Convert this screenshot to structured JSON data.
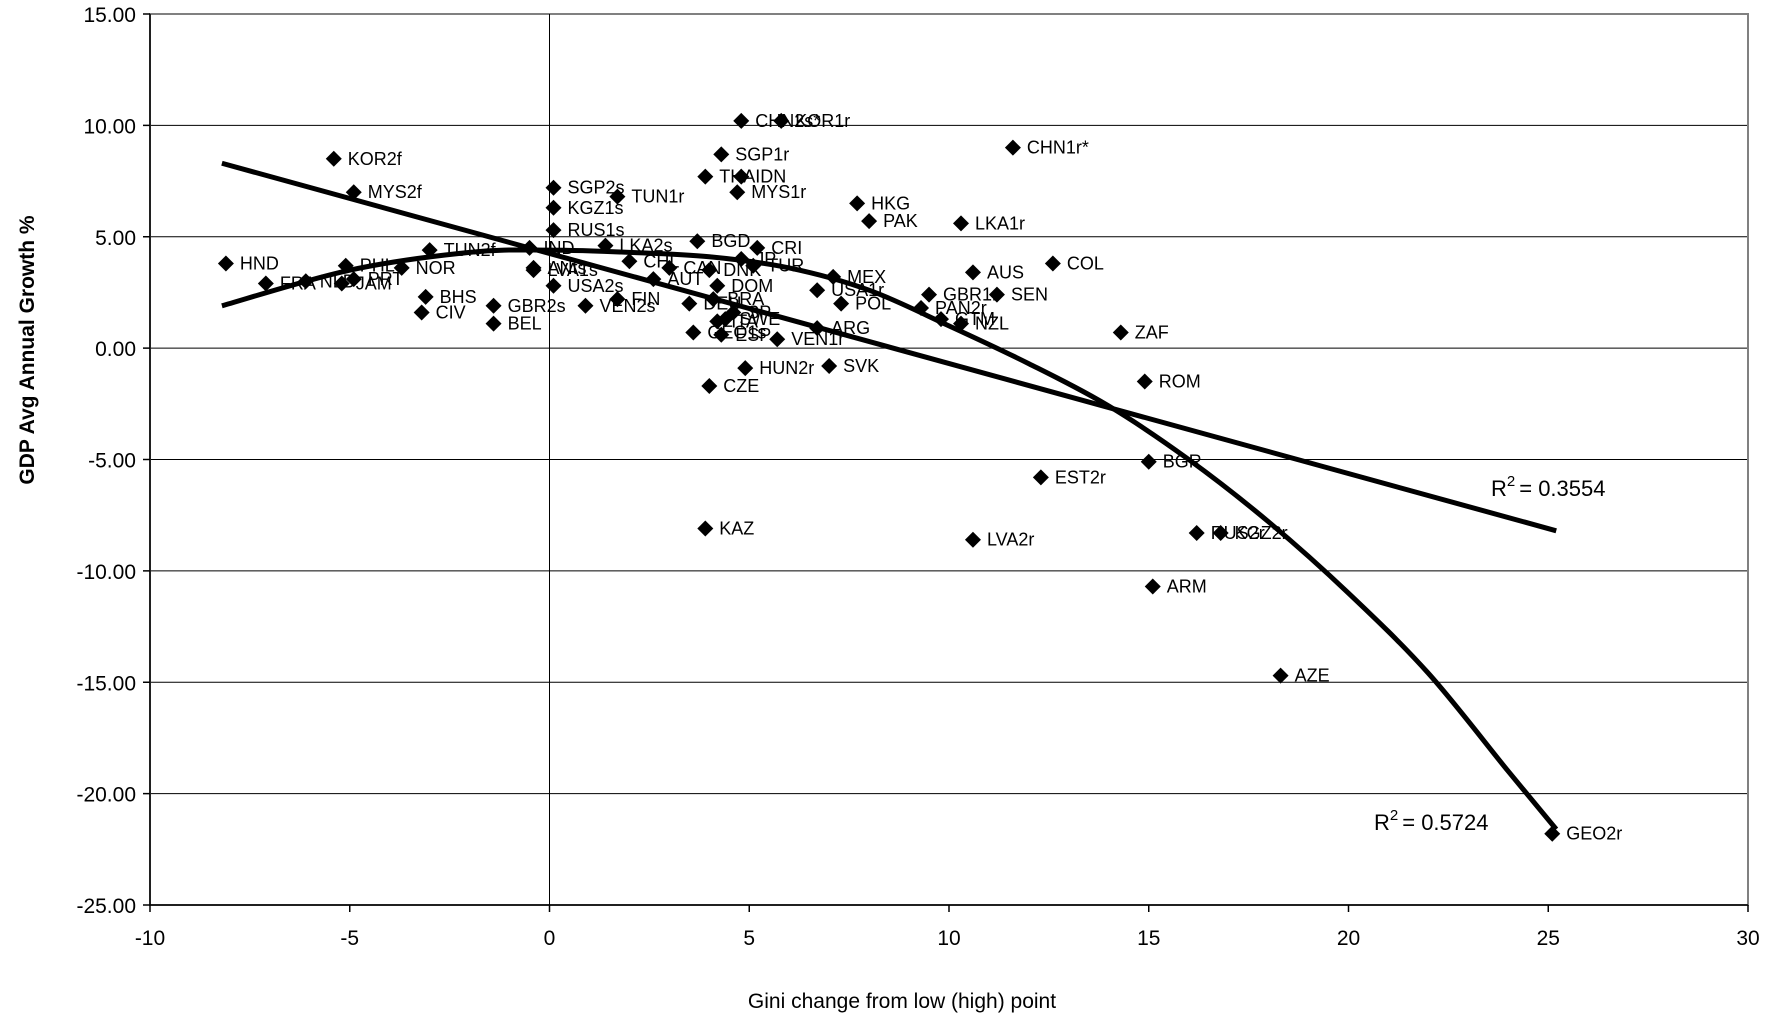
{
  "chart_data": {
    "type": "scatter",
    "title": "",
    "xlabel": "Gini change from low (high) point",
    "ylabel": "GDP Avg Annual Growth %",
    "xlim": [
      -10,
      30
    ],
    "ylim": [
      -25,
      15
    ],
    "xticks": [
      -10,
      -5,
      0,
      5,
      10,
      15,
      20,
      25,
      30
    ],
    "xtick_labels": [
      "-10",
      "-5",
      "0",
      "5",
      "10",
      "15",
      "20",
      "25",
      "30"
    ],
    "yticks": [
      15,
      10,
      5,
      0,
      -5,
      -10,
      -15,
      -20,
      -25
    ],
    "ytick_labels": [
      "15.00",
      "10.00",
      "5.00",
      "0.00",
      "-5.00",
      "-10.00",
      "-15.00",
      "-20.00",
      "-25.00"
    ],
    "grid": {
      "horizontal": true,
      "vertical": false
    },
    "reference_line_x": 0,
    "points": [
      {
        "label": "CHN2s*",
        "x": 4.8,
        "y": 10.2
      },
      {
        "label": "KOR1r",
        "x": 5.8,
        "y": 10.2
      },
      {
        "label": "CHN1r*",
        "x": 11.6,
        "y": 9.0
      },
      {
        "label": "KOR2f",
        "x": -5.4,
        "y": 8.5
      },
      {
        "label": "SGP1r",
        "x": 4.3,
        "y": 8.7
      },
      {
        "label": "THA",
        "x": 3.9,
        "y": 7.7
      },
      {
        "label": "IDN",
        "x": 4.8,
        "y": 7.7
      },
      {
        "label": "MYS2f",
        "x": -4.9,
        "y": 7.0
      },
      {
        "label": "SGP2s",
        "x": 0.1,
        "y": 7.2
      },
      {
        "label": "MYS1r",
        "x": 4.7,
        "y": 7.0
      },
      {
        "label": "TUN1r",
        "x": 1.7,
        "y": 6.8
      },
      {
        "label": "HKG",
        "x": 7.7,
        "y": 6.5
      },
      {
        "label": "KGZ1s",
        "x": 0.1,
        "y": 6.3
      },
      {
        "label": "PAK",
        "x": 8.0,
        "y": 5.7
      },
      {
        "label": "LKA1r",
        "x": 10.3,
        "y": 5.6
      },
      {
        "label": "RUS1s",
        "x": 0.1,
        "y": 5.3
      },
      {
        "label": "BGD",
        "x": 3.7,
        "y": 4.8
      },
      {
        "label": "CRI",
        "x": 5.2,
        "y": 4.5
      },
      {
        "label": "TUN2f",
        "x": -3.0,
        "y": 4.4
      },
      {
        "label": "LKA2s",
        "x": 1.4,
        "y": 4.6
      },
      {
        "label": "JP",
        "x": 4.8,
        "y": 4.0
      },
      {
        "label": "HND",
        "x": -8.1,
        "y": 3.8
      },
      {
        "label": "PHL",
        "x": -5.1,
        "y": 3.7
      },
      {
        "label": "IND",
        "x": -0.5,
        "y": 4.5
      },
      {
        "label": "ANts",
        "x": -0.4,
        "y": 3.6
      },
      {
        "label": "COL",
        "x": 12.6,
        "y": 3.8
      },
      {
        "label": "TUR",
        "x": 5.1,
        "y": 3.7
      },
      {
        "label": "CHL",
        "x": 2.0,
        "y": 3.9
      },
      {
        "label": "CAN",
        "x": 3.0,
        "y": 3.6
      },
      {
        "label": "NOR",
        "x": -3.7,
        "y": 3.6
      },
      {
        "label": "LVA1s",
        "x": -0.4,
        "y": 3.5
      },
      {
        "label": "DNK",
        "x": 4.0,
        "y": 3.5
      },
      {
        "label": "AUS",
        "x": 10.6,
        "y": 3.4
      },
      {
        "label": "MEX",
        "x": 7.1,
        "y": 3.2
      },
      {
        "label": "AUT",
        "x": 2.6,
        "y": 3.1
      },
      {
        "label": "PRT",
        "x": -4.9,
        "y": 3.1
      },
      {
        "label": "FRA",
        "x": -7.1,
        "y": 2.9
      },
      {
        "label": "NLD",
        "x": -6.1,
        "y": 3.0
      },
      {
        "label": "JAM",
        "x": -5.2,
        "y": 2.9
      },
      {
        "label": "USA2s",
        "x": 0.1,
        "y": 2.8
      },
      {
        "label": "DOM",
        "x": 4.2,
        "y": 2.8
      },
      {
        "label": "USA1r",
        "x": 6.7,
        "y": 2.6
      },
      {
        "label": "GBR1r",
        "x": 9.5,
        "y": 2.4
      },
      {
        "label": "SEN",
        "x": 11.2,
        "y": 2.4
      },
      {
        "label": "BHS",
        "x": -3.1,
        "y": 2.3
      },
      {
        "label": "FIN",
        "x": 1.7,
        "y": 2.2
      },
      {
        "label": "BRA",
        "x": 4.1,
        "y": 2.2
      },
      {
        "label": "DEU",
        "x": 3.5,
        "y": 2.0
      },
      {
        "label": "POL",
        "x": 7.3,
        "y": 2.0
      },
      {
        "label": "VEN2s",
        "x": 0.9,
        "y": 1.9
      },
      {
        "label": "GBR2s",
        "x": -1.4,
        "y": 1.9
      },
      {
        "label": "PAN2r",
        "x": 9.3,
        "y": 1.8
      },
      {
        "label": "CIV",
        "x": -3.2,
        "y": 1.6
      },
      {
        "label": "SP",
        "x": 4.6,
        "y": 1.6
      },
      {
        "label": "GTM",
        "x": 9.8,
        "y": 1.3
      },
      {
        "label": "SWE",
        "x": 4.4,
        "y": 1.3
      },
      {
        "label": "ITA",
        "x": 4.2,
        "y": 1.2
      },
      {
        "label": "BEL",
        "x": -1.4,
        "y": 1.1
      },
      {
        "label": "NZL",
        "x": 10.3,
        "y": 1.1
      },
      {
        "label": "ARG",
        "x": 6.7,
        "y": 0.9
      },
      {
        "label": "GEO1s",
        "x": 3.6,
        "y": 0.7
      },
      {
        "label": "ZAF",
        "x": 14.3,
        "y": 0.7
      },
      {
        "label": "ESP",
        "x": 4.3,
        "y": 0.6
      },
      {
        "label": "VEN1r",
        "x": 5.7,
        "y": 0.4
      },
      {
        "label": "HUN2r",
        "x": 4.9,
        "y": -0.9
      },
      {
        "label": "SVK",
        "x": 7.0,
        "y": -0.8
      },
      {
        "label": "ROM",
        "x": 14.9,
        "y": -1.5
      },
      {
        "label": "CZE",
        "x": 4.0,
        "y": -1.7
      },
      {
        "label": "BGR",
        "x": 15.0,
        "y": -5.1
      },
      {
        "label": "EST2r",
        "x": 12.3,
        "y": -5.8
      },
      {
        "label": "KAZ",
        "x": 3.9,
        "y": -8.1
      },
      {
        "label": "RUS2r",
        "x": 16.2,
        "y": -8.3
      },
      {
        "label": "KGZ2r",
        "x": 16.8,
        "y": -8.3
      },
      {
        "label": "LVA2r",
        "x": 10.6,
        "y": -8.6
      },
      {
        "label": "ARM",
        "x": 15.1,
        "y": -10.7
      },
      {
        "label": "AZE",
        "x": 18.3,
        "y": -14.7
      },
      {
        "label": "GEO2r",
        "x": 25.1,
        "y": -21.8
      }
    ],
    "trendlines": [
      {
        "type": "linear",
        "x": [
          -8.2,
          25.2
        ],
        "y": [
          8.3,
          -8.2
        ],
        "r2_text": "= 0.3554"
      },
      {
        "type": "polynomial",
        "x": [
          -8.2,
          -5,
          -2,
          0,
          2,
          4,
          6,
          8,
          10,
          12,
          14,
          16,
          18,
          20,
          22,
          24,
          25.2
        ],
        "y": [
          1.9,
          3.5,
          4.3,
          4.4,
          4.3,
          4.1,
          3.6,
          2.6,
          1.0,
          -0.7,
          -2.6,
          -5.0,
          -7.8,
          -11.0,
          -14.6,
          -19.0,
          -21.6
        ],
        "r2_text": "= 0.5724"
      }
    ],
    "r2_prefix": "R",
    "r2_sup": "2"
  }
}
